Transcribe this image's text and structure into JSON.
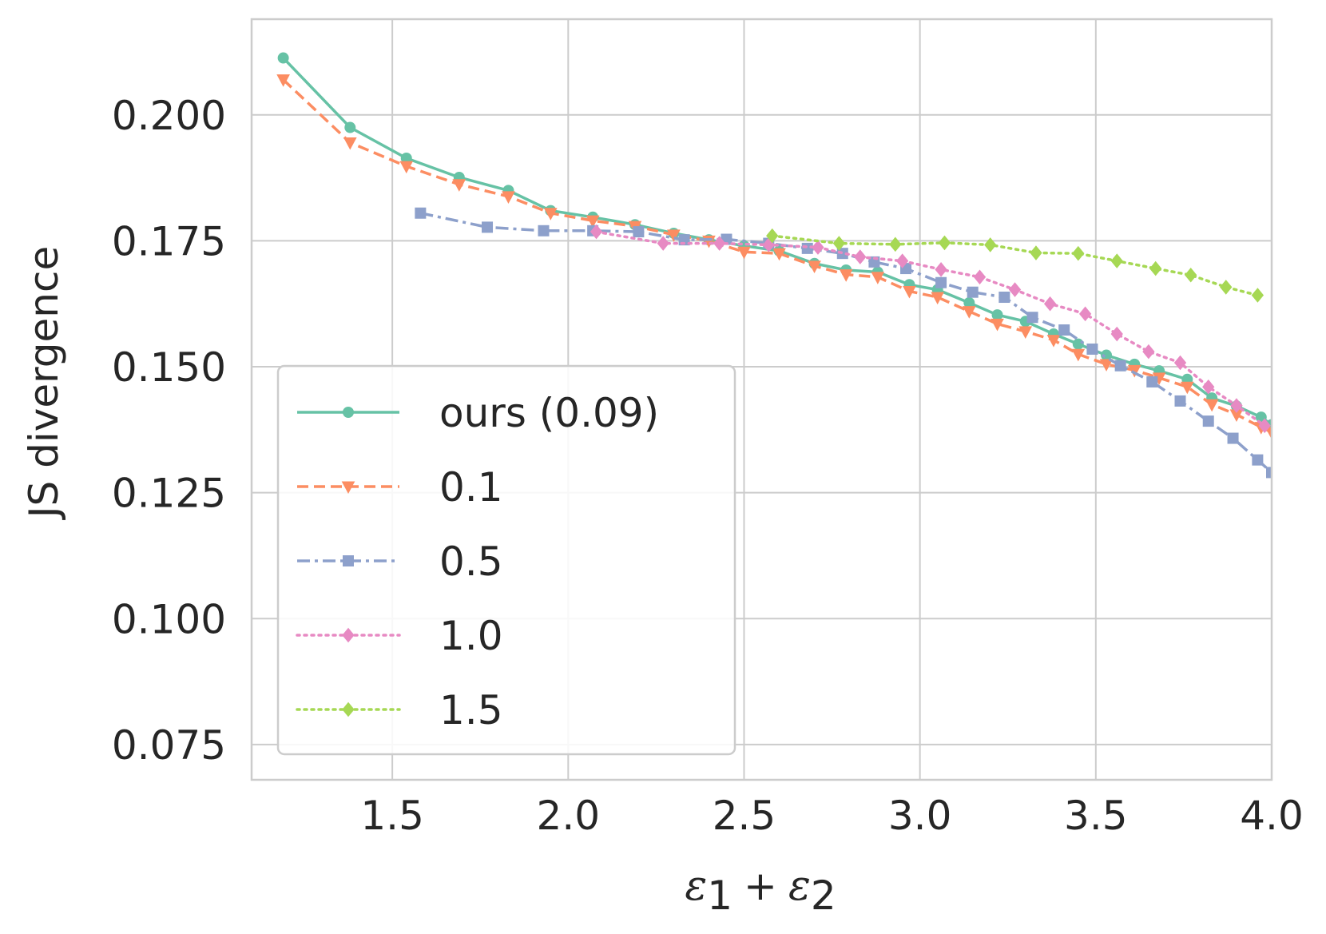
{
  "chart_data": {
    "type": "line",
    "title": "",
    "xlabel": "ε1 + ε2",
    "xlabel_parts": {
      "main": "ε",
      "sub1": "1",
      "plus": "+",
      "sub2": "2"
    },
    "ylabel": "JS divergence",
    "xlim": [
      1.1,
      4.0
    ],
    "ylim": [
      0.068,
      0.219
    ],
    "xticks": [
      "1.5",
      "2.0",
      "2.5",
      "3.0",
      "3.5",
      "4.0"
    ],
    "xtick_values": [
      1.5,
      2.0,
      2.5,
      3.0,
      3.5,
      4.0
    ],
    "yticks": [
      "0.075",
      "0.100",
      "0.125",
      "0.150",
      "0.175",
      "0.200"
    ],
    "ytick_values": [
      0.075,
      0.1,
      0.125,
      0.15,
      0.175,
      0.2
    ],
    "grid": true,
    "legend_position": "lower-left",
    "series": [
      {
        "name": "ours (0.09)",
        "color": "#66c2a5",
        "dash": "solid",
        "marker": "circle",
        "x": [
          1.19,
          1.38,
          1.54,
          1.69,
          1.83,
          1.95,
          2.07,
          2.19,
          2.3,
          2.4,
          2.5,
          2.6,
          2.7,
          2.79,
          2.88,
          2.97,
          3.05,
          3.14,
          3.22,
          3.3,
          3.38,
          3.45,
          3.53,
          3.61,
          3.68,
          3.76,
          3.83,
          3.9,
          3.97,
          4.0
        ],
        "y": [
          0.2113,
          0.1975,
          0.1914,
          0.1876,
          0.185,
          0.181,
          0.1797,
          0.1782,
          0.1765,
          0.1752,
          0.174,
          0.173,
          0.1705,
          0.1692,
          0.1688,
          0.1663,
          0.1653,
          0.1627,
          0.1603,
          0.159,
          0.1565,
          0.1545,
          0.1523,
          0.1505,
          0.1492,
          0.1475,
          0.1438,
          0.1422,
          0.14,
          0.1385
        ]
      },
      {
        "name": "0.1",
        "color": "#fc8d62",
        "dash": "dashed",
        "marker": "triangle-down",
        "x": [
          1.19,
          1.38,
          1.54,
          1.69,
          1.83,
          1.95,
          2.07,
          2.19,
          2.3,
          2.4,
          2.5,
          2.6,
          2.7,
          2.79,
          2.88,
          2.97,
          3.05,
          3.14,
          3.22,
          3.3,
          3.38,
          3.45,
          3.53,
          3.61,
          3.68,
          3.76,
          3.83,
          3.9,
          3.97,
          4.0
        ],
        "y": [
          0.207,
          0.1945,
          0.1898,
          0.1862,
          0.1838,
          0.1805,
          0.179,
          0.1779,
          0.1762,
          0.175,
          0.1728,
          0.1725,
          0.17,
          0.1683,
          0.1678,
          0.165,
          0.1638,
          0.161,
          0.1585,
          0.157,
          0.1553,
          0.1525,
          0.1505,
          0.1493,
          0.1478,
          0.146,
          0.1425,
          0.1405,
          0.138,
          0.137
        ]
      },
      {
        "name": "0.5",
        "color": "#8da0cb",
        "dash": "dashdot",
        "marker": "square",
        "x": [
          1.58,
          1.77,
          1.93,
          2.07,
          2.2,
          2.33,
          2.45,
          2.57,
          2.68,
          2.78,
          2.87,
          2.96,
          3.06,
          3.15,
          3.24,
          3.32,
          3.41,
          3.49,
          3.57,
          3.66,
          3.74,
          3.82,
          3.89,
          3.96,
          4.0
        ],
        "y": [
          0.1805,
          0.1777,
          0.177,
          0.177,
          0.1768,
          0.1752,
          0.1753,
          0.1745,
          0.1735,
          0.1725,
          0.1708,
          0.1695,
          0.1667,
          0.1648,
          0.1638,
          0.1598,
          0.1573,
          0.1535,
          0.1502,
          0.147,
          0.1432,
          0.1392,
          0.1358,
          0.1315,
          0.129
        ]
      },
      {
        "name": "1.0",
        "color": "#e78ac3",
        "dash": "dotted",
        "marker": "diamond",
        "x": [
          2.08,
          2.27,
          2.43,
          2.57,
          2.71,
          2.83,
          2.95,
          3.06,
          3.17,
          3.27,
          3.37,
          3.47,
          3.56,
          3.65,
          3.74,
          3.82,
          3.9,
          3.98
        ],
        "y": [
          0.1768,
          0.1745,
          0.1745,
          0.1742,
          0.1737,
          0.1718,
          0.171,
          0.1693,
          0.1678,
          0.1653,
          0.1625,
          0.1605,
          0.1565,
          0.153,
          0.1508,
          0.146,
          0.1423,
          0.1383
        ]
      },
      {
        "name": "1.5",
        "color": "#a6d854",
        "dash": "dotted",
        "marker": "diamond",
        "x": [
          2.58,
          2.77,
          2.93,
          3.07,
          3.2,
          3.33,
          3.45,
          3.56,
          3.67,
          3.77,
          3.87,
          3.96
        ],
        "y": [
          0.176,
          0.1745,
          0.1743,
          0.1746,
          0.1742,
          0.1726,
          0.1725,
          0.171,
          0.1695,
          0.1682,
          0.1658,
          0.1642
        ]
      }
    ]
  }
}
